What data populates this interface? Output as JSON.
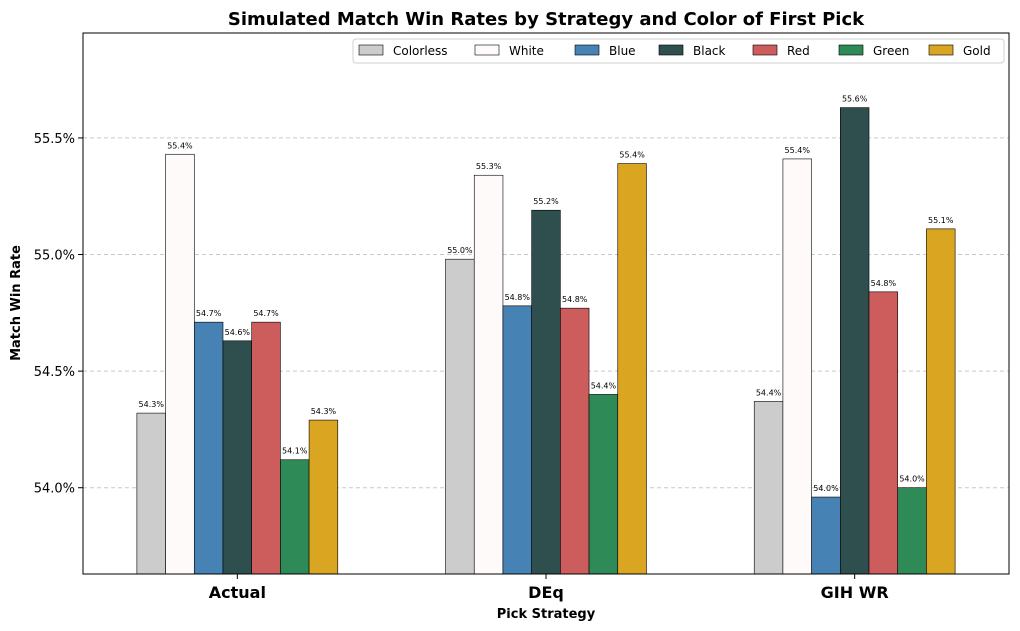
{
  "chart_data": {
    "type": "bar",
    "title": "Simulated Match Win Rates by Strategy and Color of First Pick",
    "xlabel": "Pick Strategy",
    "ylabel": "Match Win Rate",
    "ylim": [
      53.63,
      55.95
    ],
    "yticks": [
      {
        "value": 54.0,
        "label": "54.0%"
      },
      {
        "value": 54.5,
        "label": "54.5%"
      },
      {
        "value": 55.0,
        "label": "55.0%"
      },
      {
        "value": 55.5,
        "label": "55.5%"
      }
    ],
    "grid": "y-dashed",
    "legend_position": "top-right",
    "categories": [
      "Actual",
      "DEq",
      "GIH WR"
    ],
    "series": [
      {
        "name": "Colorless",
        "color": "#cccccc",
        "values": [
          54.32,
          54.98,
          54.37
        ],
        "labels": [
          "54.3%",
          "55.0%",
          "54.4%"
        ]
      },
      {
        "name": "White",
        "color": "#fffafa",
        "values": [
          55.43,
          55.34,
          55.41
        ],
        "labels": [
          "55.4%",
          "55.3%",
          "55.4%"
        ]
      },
      {
        "name": "Blue",
        "color": "#4682b4",
        "values": [
          54.71,
          54.78,
          53.96
        ],
        "labels": [
          "54.7%",
          "54.8%",
          "54.0%"
        ]
      },
      {
        "name": "Black",
        "color": "#2f4f4f",
        "values": [
          54.63,
          55.19,
          55.63
        ],
        "labels": [
          "54.6%",
          "55.2%",
          "55.6%"
        ]
      },
      {
        "name": "Red",
        "color": "#cd5c5c",
        "values": [
          54.71,
          54.77,
          54.84
        ],
        "labels": [
          "54.7%",
          "54.8%",
          "54.8%"
        ]
      },
      {
        "name": "Green",
        "color": "#2e8b57",
        "values": [
          54.12,
          54.4,
          54.0
        ],
        "labels": [
          "54.1%",
          "54.4%",
          "54.0%"
        ]
      },
      {
        "name": "Gold",
        "color": "#daa520",
        "values": [
          54.29,
          55.39,
          55.11
        ],
        "labels": [
          "54.3%",
          "55.4%",
          "55.1%"
        ]
      }
    ]
  }
}
